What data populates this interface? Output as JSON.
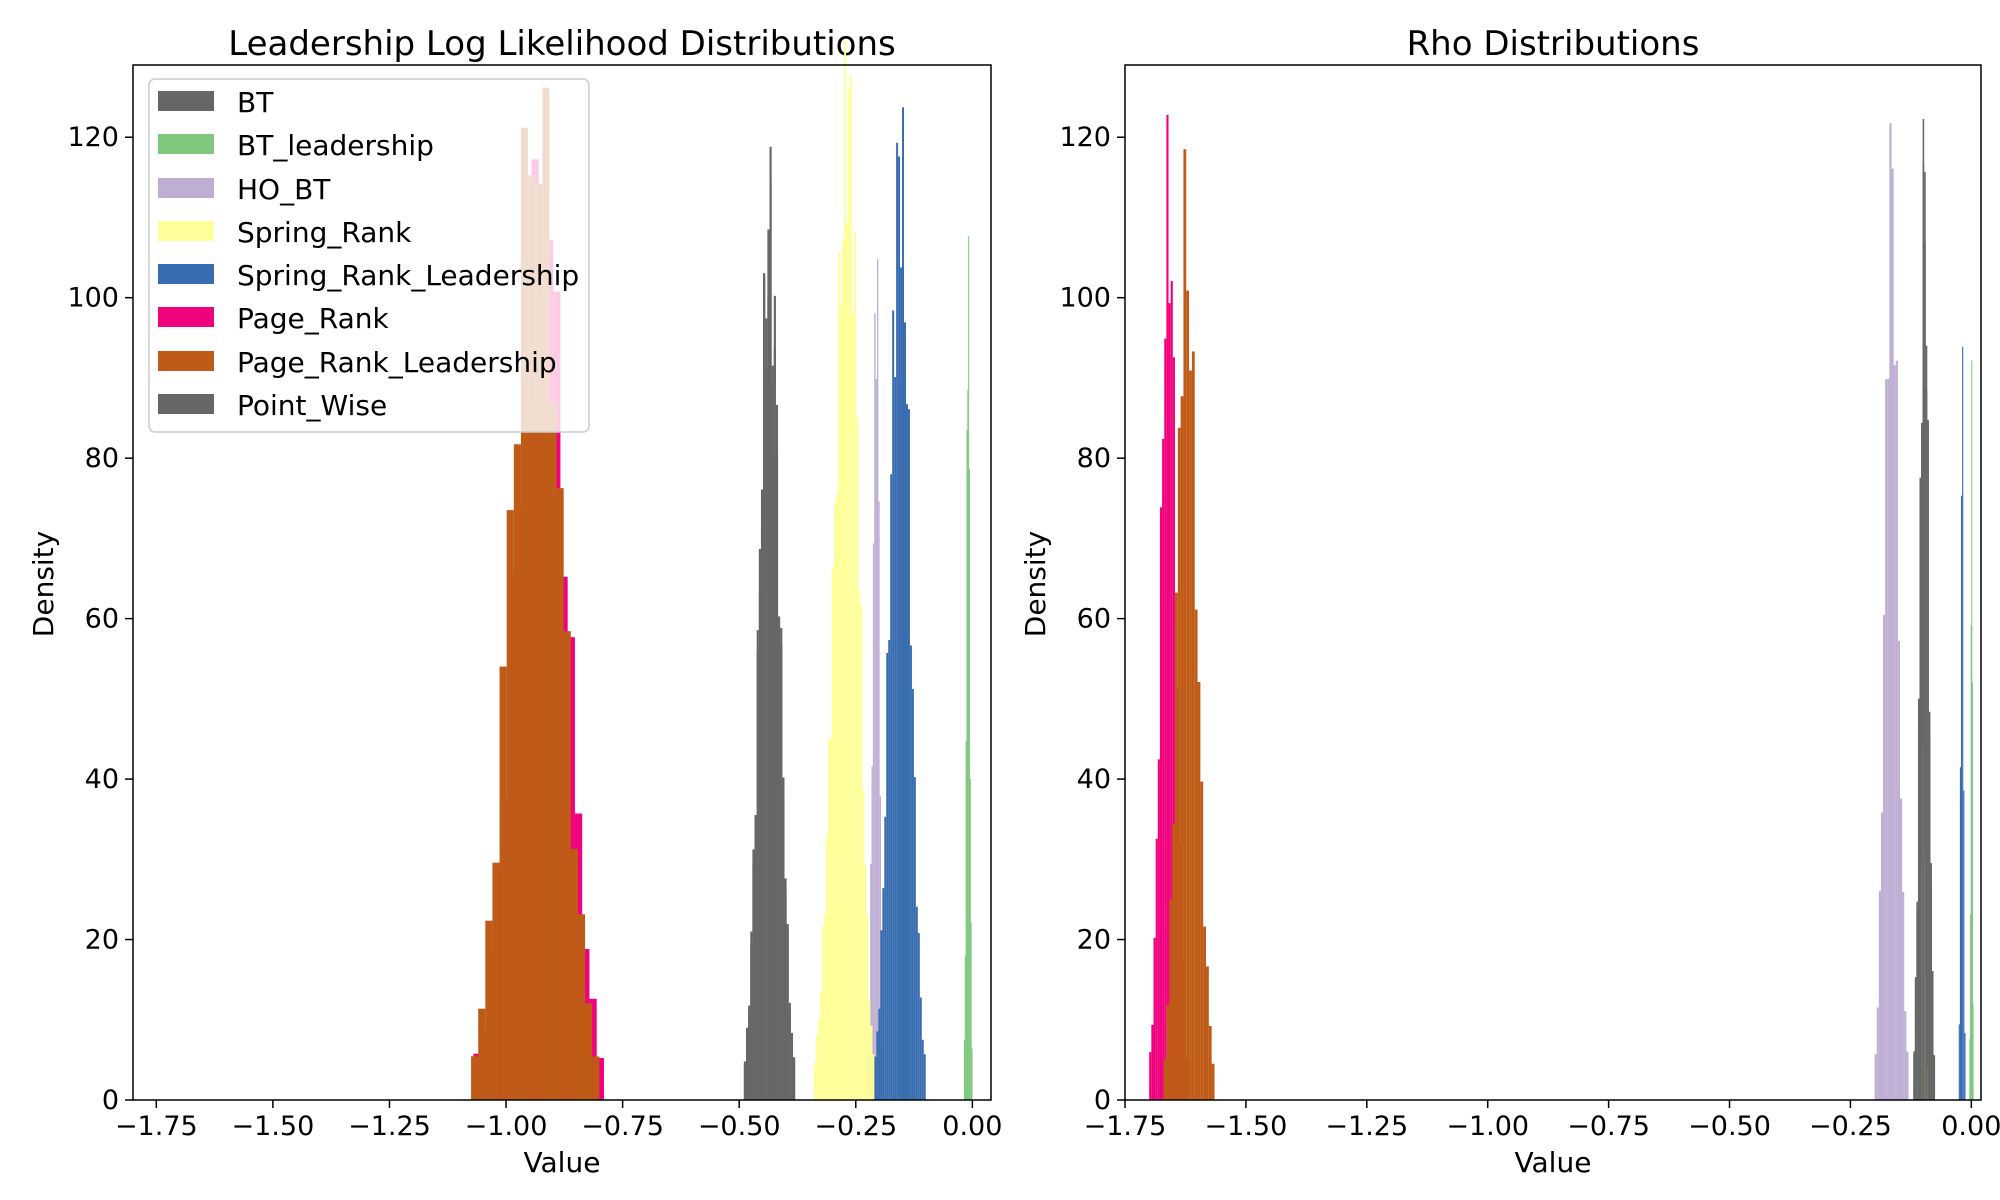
{
  "chart_data": [
    {
      "type": "histogram",
      "title": "Leadership Log Likelihood Distributions",
      "xlabel": "Value",
      "ylabel": "Density",
      "xlim": [
        -1.8,
        0.04
      ],
      "ylim": [
        0,
        129
      ],
      "xticks": [
        -1.75,
        -1.5,
        -1.25,
        -1.0,
        -0.75,
        -0.5,
        -0.25,
        0.0
      ],
      "xtick_labels": [
        "−1.75",
        "−1.50",
        "−1.25",
        "−1.00",
        "−0.75",
        "−0.50",
        "−0.25",
        "0.00"
      ],
      "yticks": [
        0,
        20,
        40,
        60,
        80,
        100,
        120
      ],
      "ytick_labels": [
        "0",
        "20",
        "40",
        "60",
        "80",
        "100",
        "120"
      ],
      "legend": {
        "position": "upper-left"
      },
      "series": [
        {
          "name": "BT",
          "color": "#666666",
          "min": -0.49,
          "max": -0.38,
          "peak": 107,
          "peakX": -0.435,
          "bins": 24
        },
        {
          "name": "BT_leadership",
          "color": "#7fc97f",
          "min": -0.018,
          "max": 0.0,
          "peak": 104,
          "peakX": -0.009,
          "bins": 10
        },
        {
          "name": "HO_BT",
          "color": "#beaed4",
          "min": -0.225,
          "max": -0.19,
          "peak": 103,
          "peakX": -0.205,
          "bins": 12
        },
        {
          "name": "Spring_Rank",
          "color": "#ffff99",
          "min": -0.34,
          "max": -0.21,
          "peak": 123,
          "peakX": -0.265,
          "bins": 30
        },
        {
          "name": "Spring_Rank_Leadership",
          "color": "#386cb0",
          "min": -0.21,
          "max": -0.1,
          "peak": 116,
          "peakX": -0.155,
          "bins": 26
        },
        {
          "name": "Page_Rank",
          "color": "#f0027f",
          "min": -1.07,
          "max": -0.79,
          "peak": 110,
          "peakX": -0.92,
          "bins": 18
        },
        {
          "name": "Page_Rank_Leadership",
          "color": "#bf5b17",
          "min": -1.075,
          "max": -0.8,
          "peak": 122,
          "peakX": -0.935,
          "bins": 18
        },
        {
          "name": "Point_Wise",
          "color": "#666666",
          "min": -0.49,
          "max": -0.38,
          "peak": 107,
          "peakX": -0.435,
          "bins": 24
        }
      ]
    },
    {
      "type": "histogram",
      "title": "Rho Distributions",
      "xlabel": "Value",
      "ylabel": "Density",
      "xlim": [
        -1.75,
        0.02
      ],
      "ylim": [
        0,
        129
      ],
      "xticks": [
        -1.75,
        -1.5,
        -1.25,
        -1.0,
        -0.75,
        -0.5,
        -0.25,
        0.0
      ],
      "xtick_labels": [
        "−1.75",
        "−1.50",
        "−1.25",
        "−1.00",
        "−0.75",
        "−0.50",
        "−0.25",
        "0.00"
      ],
      "yticks": [
        0,
        20,
        40,
        60,
        80,
        100,
        120
      ],
      "ytick_labels": [
        "0",
        "20",
        "40",
        "60",
        "80",
        "100",
        "120"
      ],
      "series": [
        {
          "name": "BT",
          "color": "#666666",
          "min": -0.12,
          "max": -0.075,
          "peak": 113,
          "peakX": -0.097,
          "bins": 14
        },
        {
          "name": "BT_leadership",
          "color": "#7fc97f",
          "min": -0.004,
          "max": 0.004,
          "peak": 86,
          "peakX": 0.001,
          "bins": 6
        },
        {
          "name": "HO_BT",
          "color": "#beaed4",
          "min": -0.2,
          "max": -0.13,
          "peak": 115,
          "peakX": -0.165,
          "bins": 16
        },
        {
          "name": "Spring_Rank",
          "color": "#ffff99",
          "min": -0.115,
          "max": -0.09,
          "peak": 40,
          "peakX": -0.1,
          "bins": 8
        },
        {
          "name": "Spring_Rank_Leadership",
          "color": "#386cb0",
          "min": -0.026,
          "max": -0.012,
          "peak": 93,
          "peakX": -0.019,
          "bins": 6
        },
        {
          "name": "Page_Rank",
          "color": "#f0027f",
          "min": -1.7,
          "max": -1.62,
          "peak": 111,
          "peakX": -1.66,
          "bins": 18
        },
        {
          "name": "Page_Rank_Leadership",
          "color": "#bf5b17",
          "min": -1.67,
          "max": -1.565,
          "peak": 107,
          "peakX": -1.625,
          "bins": 18
        },
        {
          "name": "Point_Wise",
          "color": "#666666",
          "min": -0.12,
          "max": -0.075,
          "peak": 113,
          "peakX": -0.097,
          "bins": 14
        }
      ]
    }
  ]
}
